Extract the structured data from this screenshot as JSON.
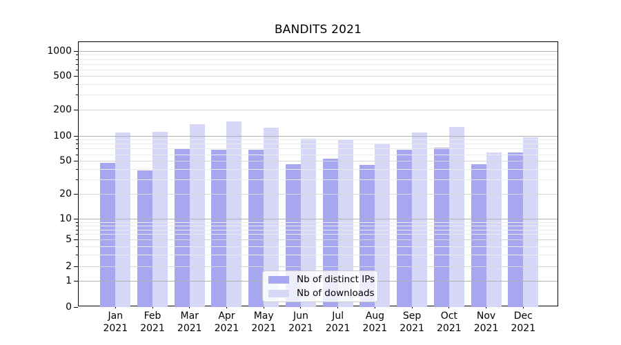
{
  "title": "BANDITS 2021",
  "chart_data": {
    "type": "bar",
    "title": "BANDITS 2021",
    "xlabel": "",
    "ylabel": "",
    "y_scale": "symlog",
    "ylim": [
      0,
      1300
    ],
    "grid": "both, drawn above bars",
    "legend_position": "inside lower-center",
    "y_ticks": [
      0,
      1,
      2,
      5,
      10,
      20,
      50,
      100,
      200,
      500,
      1000
    ],
    "categories": [
      {
        "month": "Jan",
        "year": "2021"
      },
      {
        "month": "Feb",
        "year": "2021"
      },
      {
        "month": "Mar",
        "year": "2021"
      },
      {
        "month": "Apr",
        "year": "2021"
      },
      {
        "month": "May",
        "year": "2021"
      },
      {
        "month": "Jun",
        "year": "2021"
      },
      {
        "month": "Jul",
        "year": "2021"
      },
      {
        "month": "Aug",
        "year": "2021"
      },
      {
        "month": "Sep",
        "year": "2021"
      },
      {
        "month": "Oct",
        "year": "2021"
      },
      {
        "month": "Nov",
        "year": "2021"
      },
      {
        "month": "Dec",
        "year": "2021"
      }
    ],
    "series": [
      {
        "name": "Nb of distinct IPs",
        "color": "#a7a7ef",
        "values": [
          48,
          39,
          70,
          69,
          69,
          46,
          54,
          45,
          68,
          72,
          46,
          64
        ]
      },
      {
        "name": "Nb of downloads",
        "color": "#d7d7f8",
        "values": [
          109,
          111,
          136,
          148,
          125,
          92,
          91,
          80,
          110,
          127,
          64,
          96
        ]
      }
    ]
  },
  "colors": {
    "axis": "#000000",
    "grid_major": "#b0b0b0",
    "grid_mid": "#d6d6d6",
    "grid_minor": "#ebebeb"
  }
}
